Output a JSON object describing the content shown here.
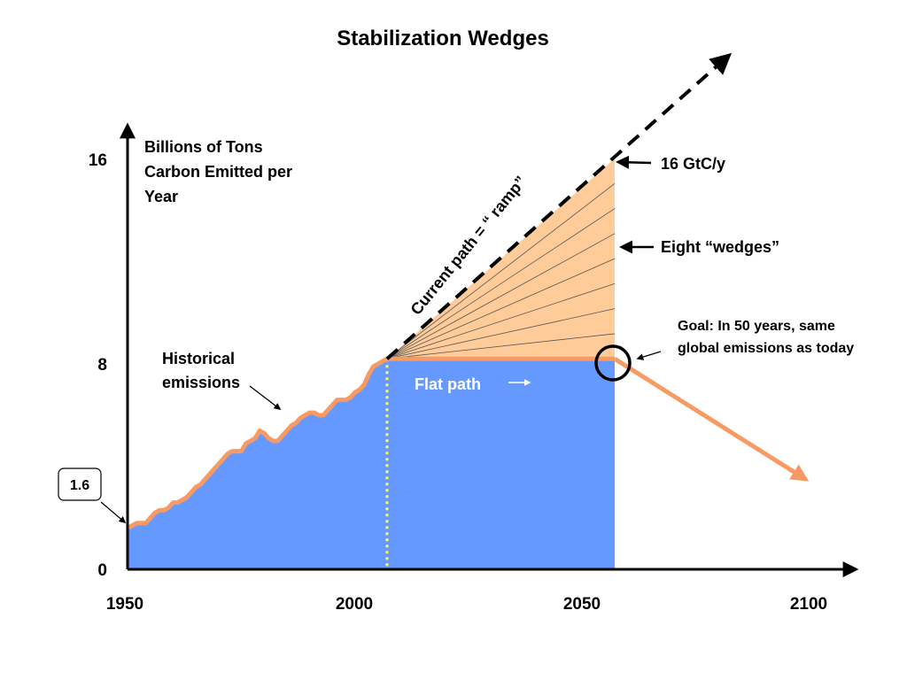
{
  "chart_data": {
    "type": "area",
    "title": "Stabilization Wedges",
    "ylabel": "Billions of Tons Carbon Emitted per Year",
    "x_ticks": [
      "1950",
      "2000",
      "2050",
      "2100"
    ],
    "y_ticks": [
      "0",
      "8",
      "16"
    ],
    "xlim": [
      1950,
      2110
    ],
    "ylim": [
      0,
      18
    ],
    "series": [
      {
        "name": "Historical emissions",
        "x": [
          1950,
          1951,
          1952,
          1953,
          1954,
          1955,
          1956,
          1957,
          1958,
          1959,
          1960,
          1961,
          1962,
          1963,
          1964,
          1965,
          1966,
          1967,
          1968,
          1969,
          1970,
          1971,
          1972,
          1973,
          1974,
          1975,
          1976,
          1977,
          1978,
          1979,
          1980,
          1981,
          1982,
          1983,
          1984,
          1985,
          1986,
          1987,
          1988,
          1989,
          1990,
          1991,
          1992,
          1993,
          1994,
          1995,
          1996,
          1997,
          1998,
          1999,
          2000,
          2001,
          2002,
          2003,
          2004,
          2005,
          2006,
          2007
        ],
        "y": [
          1.6,
          1.7,
          1.8,
          1.8,
          1.8,
          2.0,
          2.2,
          2.3,
          2.3,
          2.4,
          2.6,
          2.6,
          2.7,
          2.8,
          3.0,
          3.2,
          3.3,
          3.5,
          3.7,
          3.9,
          4.1,
          4.3,
          4.5,
          4.6,
          4.6,
          4.6,
          4.9,
          5.0,
          5.1,
          5.4,
          5.3,
          5.1,
          5.0,
          5.0,
          5.2,
          5.4,
          5.6,
          5.7,
          5.9,
          6.0,
          6.1,
          6.1,
          6.0,
          6.0,
          6.2,
          6.4,
          6.6,
          6.6,
          6.6,
          6.7,
          6.9,
          7.0,
          7.2,
          7.6,
          7.9,
          8.0,
          8.1,
          8.2
        ]
      },
      {
        "name": "Flat path",
        "x": [
          2007,
          2057
        ],
        "y": [
          8.2,
          8.2
        ]
      },
      {
        "name": "Current path = “ ramp”",
        "x": [
          2007,
          2057,
          2082
        ],
        "y": [
          8.2,
          16,
          20
        ]
      },
      {
        "name": "Goal",
        "x": [
          2057,
          2099
        ],
        "y": [
          8.2,
          3.5
        ]
      }
    ],
    "wedges": {
      "count": 8,
      "label": "Eight “wedges”",
      "x_start": 2007,
      "x_end": 2057,
      "y_low": 8.2,
      "y_high": 16
    },
    "annotations": {
      "historical": [
        "Historical",
        "emissions"
      ],
      "flat_path": "Flat path",
      "ramp": "Current path = “ ramp”",
      "top_value": "16 GtC/y",
      "wedges": "Eight “wedges”",
      "goal": [
        "Goal: In 50 years, same",
        "global emissions as today"
      ],
      "start_value": "1.6",
      "ylabel_lines": [
        "Billions of Tons",
        "Carbon Emitted per",
        "Year"
      ]
    },
    "colors": {
      "historical_fill": "#6699FF",
      "wedge_fill": "#FFCC99",
      "emission_line": "#F79A63",
      "ramp_line": "#000000",
      "today_marker": "#FFFF66"
    },
    "grid": false,
    "legend": "none"
  }
}
